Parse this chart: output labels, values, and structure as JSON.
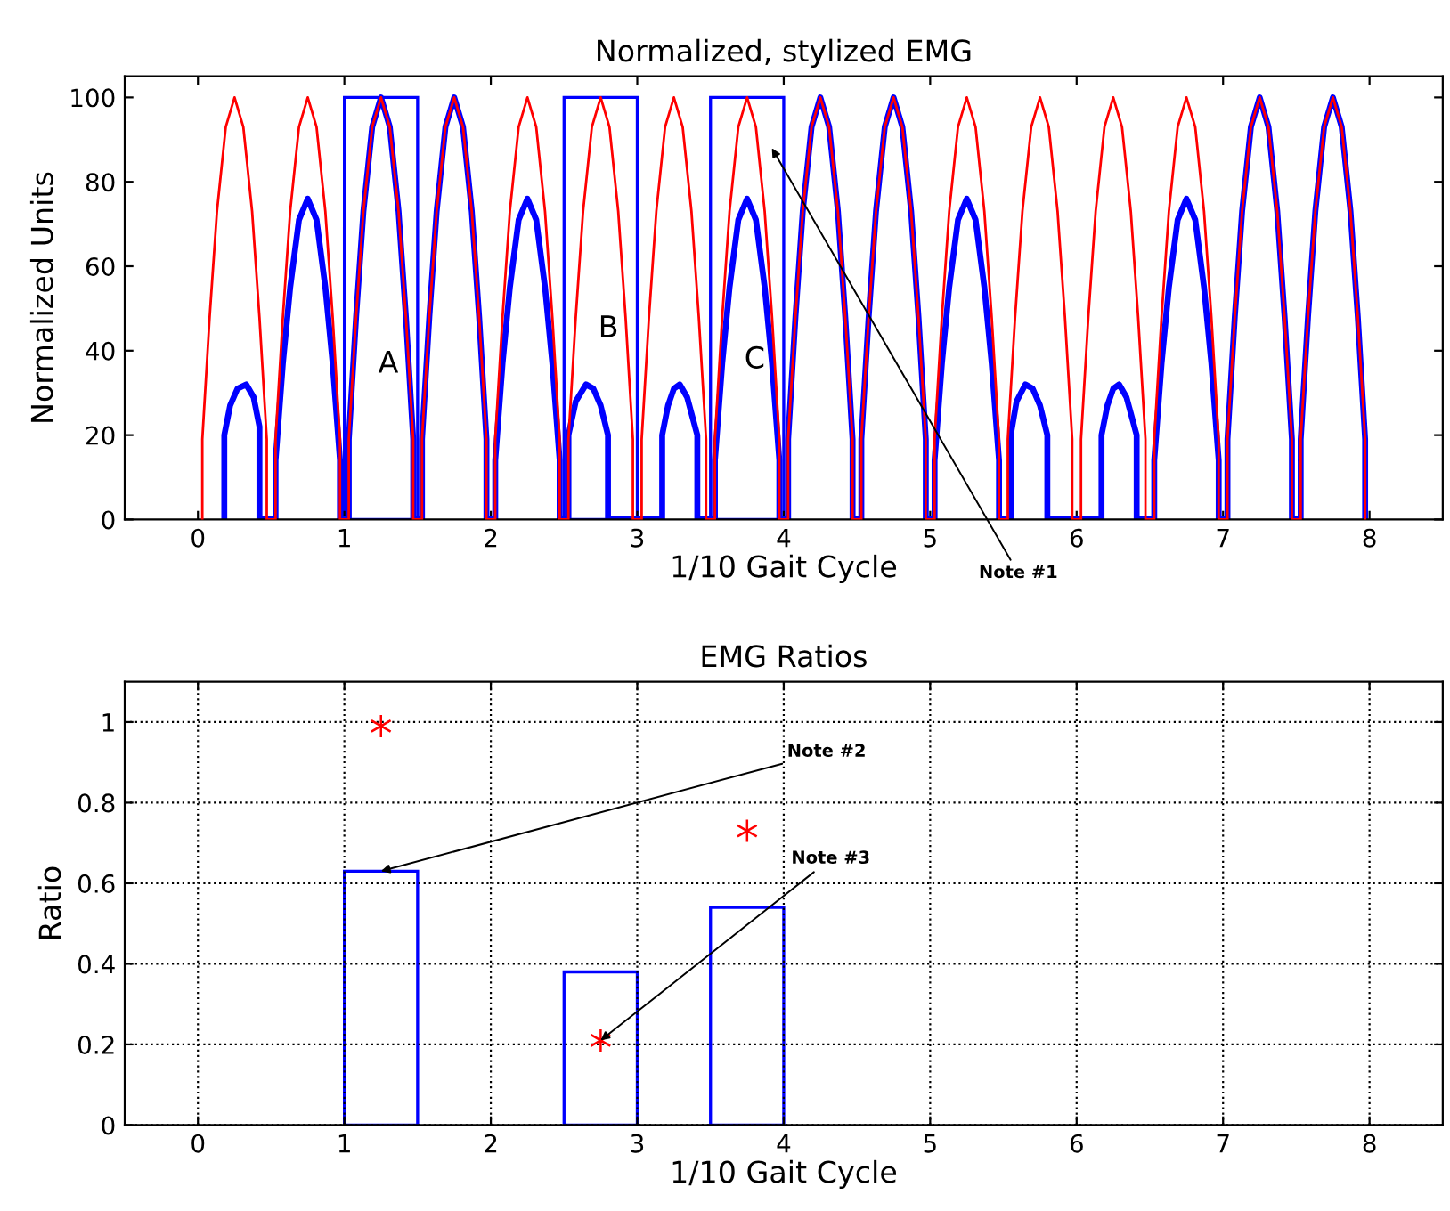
{
  "chart_data": [
    {
      "type": "line",
      "title": "Normalized, stylized EMG",
      "xlabel": "1/10 Gait Cycle",
      "ylabel": "Normalized Units",
      "xlim": [
        -0.5,
        8.5
      ],
      "ylim": [
        0,
        105
      ],
      "xticks": [
        0,
        1,
        2,
        3,
        4,
        5,
        6,
        7,
        8
      ],
      "yticks": [
        0,
        20,
        40,
        60,
        80,
        100
      ],
      "grid": false,
      "line_style": "solid",
      "marker": "none",
      "series": [
        {
          "color": "#ff0000",
          "x": [
            0.03,
            0.03,
            0.08,
            0.13,
            0.19,
            0.25,
            0.31,
            0.37,
            0.42,
            0.47,
            0.47,
            0.53,
            0.53,
            0.58,
            0.63,
            0.69,
            0.75,
            0.81,
            0.87,
            0.92,
            0.97,
            0.97,
            1.03,
            1.03,
            1.08,
            1.13,
            1.19,
            1.25,
            1.31,
            1.37,
            1.42,
            1.47,
            1.47,
            1.53,
            1.53,
            1.58,
            1.63,
            1.69,
            1.75,
            1.81,
            1.87,
            1.92,
            1.97,
            1.97,
            2.03,
            2.03,
            2.08,
            2.13,
            2.19,
            2.25,
            2.31,
            2.37,
            2.42,
            2.47,
            2.47,
            2.53,
            2.53,
            2.58,
            2.63,
            2.69,
            2.75,
            2.81,
            2.87,
            2.92,
            2.97,
            2.97,
            3.03,
            3.03,
            3.08,
            3.13,
            3.19,
            3.25,
            3.31,
            3.37,
            3.42,
            3.47,
            3.47,
            3.53,
            3.53,
            3.58,
            3.63,
            3.69,
            3.75,
            3.81,
            3.87,
            3.92,
            3.97,
            3.97,
            4.03,
            4.03,
            4.08,
            4.13,
            4.19,
            4.25,
            4.31,
            4.37,
            4.42,
            4.47,
            4.47,
            4.53,
            4.53,
            4.58,
            4.63,
            4.69,
            4.75,
            4.81,
            4.87,
            4.92,
            4.97,
            4.97,
            5.03,
            5.03,
            5.08,
            5.13,
            5.19,
            5.25,
            5.31,
            5.37,
            5.42,
            5.47,
            5.47,
            5.53,
            5.53,
            5.58,
            5.63,
            5.69,
            5.75,
            5.81,
            5.87,
            5.92,
            5.97,
            5.97,
            6.03,
            6.03,
            6.08,
            6.13,
            6.19,
            6.25,
            6.31,
            6.37,
            6.42,
            6.47,
            6.47,
            6.53,
            6.53,
            6.58,
            6.63,
            6.69,
            6.75,
            6.81,
            6.87,
            6.92,
            6.97,
            6.97,
            7.03,
            7.03,
            7.08,
            7.13,
            7.19,
            7.25,
            7.31,
            7.37,
            7.42,
            7.47,
            7.47,
            7.53,
            7.53,
            7.58,
            7.63,
            7.69,
            7.75,
            7.81,
            7.87,
            7.92,
            7.97,
            7.97
          ],
          "values": [
            0,
            19,
            48,
            73,
            93,
            100,
            93,
            73,
            48,
            19,
            0,
            0,
            19,
            48,
            73,
            93,
            100,
            93,
            73,
            48,
            19,
            0,
            0,
            19,
            48,
            73,
            93,
            100,
            93,
            73,
            48,
            19,
            0,
            0,
            19,
            48,
            73,
            93,
            100,
            93,
            73,
            48,
            19,
            0,
            0,
            19,
            48,
            73,
            93,
            100,
            93,
            73,
            48,
            19,
            0,
            0,
            19,
            48,
            73,
            93,
            100,
            93,
            73,
            48,
            19,
            0,
            0,
            19,
            48,
            73,
            93,
            100,
            93,
            73,
            48,
            19,
            0,
            0,
            19,
            48,
            73,
            93,
            100,
            93,
            73,
            48,
            19,
            0,
            0,
            19,
            48,
            73,
            93,
            100,
            93,
            73,
            48,
            19,
            0,
            0,
            19,
            48,
            73,
            93,
            100,
            93,
            73,
            48,
            19,
            0,
            0,
            19,
            48,
            73,
            93,
            100,
            93,
            73,
            48,
            19,
            0,
            0,
            19,
            48,
            73,
            93,
            100,
            93,
            73,
            48,
            19,
            0,
            0,
            19,
            48,
            73,
            93,
            100,
            93,
            73,
            48,
            19,
            0,
            0,
            19,
            48,
            73,
            93,
            100,
            93,
            73,
            48,
            19,
            0,
            0,
            19,
            48,
            73,
            93,
            100,
            93,
            73,
            48,
            19,
            0,
            0,
            19,
            48,
            73,
            93,
            100,
            93,
            73,
            48,
            19,
            0
          ]
        },
        {
          "color": "#0000ff",
          "x": [
            0.18,
            0.18,
            0.22,
            0.27,
            0.33,
            0.38,
            0.42,
            0.42,
            0.53,
            0.53,
            0.58,
            0.63,
            0.69,
            0.75,
            0.81,
            0.87,
            0.92,
            0.97,
            0.97,
            1.03,
            1.03,
            1.08,
            1.13,
            1.19,
            1.25,
            1.31,
            1.37,
            1.42,
            1.47,
            1.47,
            1.53,
            1.53,
            1.58,
            1.63,
            1.69,
            1.75,
            1.81,
            1.87,
            1.92,
            1.97,
            1.97,
            2.03,
            2.03,
            2.08,
            2.13,
            2.19,
            2.25,
            2.31,
            2.37,
            2.42,
            2.47,
            2.47,
            2.53,
            2.53,
            2.58,
            2.65,
            2.7,
            2.75,
            2.8,
            2.8,
            3.17,
            3.17,
            3.21,
            3.25,
            3.29,
            3.34,
            3.41,
            3.41,
            3.53,
            3.53,
            3.58,
            3.63,
            3.69,
            3.75,
            3.81,
            3.87,
            3.92,
            3.97,
            3.97,
            4.03,
            4.03,
            4.08,
            4.13,
            4.19,
            4.25,
            4.31,
            4.37,
            4.42,
            4.47,
            4.47,
            4.53,
            4.53,
            4.58,
            4.63,
            4.69,
            4.75,
            4.81,
            4.87,
            4.92,
            4.97,
            4.97,
            5.03,
            5.03,
            5.08,
            5.13,
            5.19,
            5.25,
            5.31,
            5.37,
            5.42,
            5.47,
            5.47,
            5.55,
            5.55,
            5.59,
            5.65,
            5.7,
            5.75,
            5.8,
            5.8,
            6.17,
            6.17,
            6.21,
            6.25,
            6.29,
            6.34,
            6.41,
            6.41,
            6.53,
            6.53,
            6.58,
            6.63,
            6.69,
            6.75,
            6.81,
            6.87,
            6.92,
            6.97,
            6.97,
            7.03,
            7.03,
            7.08,
            7.13,
            7.19,
            7.25,
            7.31,
            7.37,
            7.42,
            7.47,
            7.47,
            7.53,
            7.53,
            7.58,
            7.63,
            7.69,
            7.75,
            7.81,
            7.87,
            7.92,
            7.97,
            7.97
          ],
          "values": [
            0,
            20,
            27,
            31,
            32,
            29,
            22,
            0,
            0,
            14,
            37,
            55,
            71,
            76,
            71,
            55,
            37,
            14,
            0,
            0,
            19,
            48,
            73,
            93,
            100,
            93,
            73,
            48,
            19,
            0,
            0,
            19,
            48,
            73,
            93,
            100,
            93,
            73,
            48,
            19,
            0,
            0,
            14,
            37,
            55,
            71,
            76,
            71,
            55,
            37,
            14,
            0,
            0,
            20,
            28,
            32,
            31,
            27,
            20,
            0,
            0,
            20,
            27,
            31,
            32,
            29,
            20,
            0,
            0,
            14,
            37,
            55,
            71,
            76,
            71,
            55,
            37,
            14,
            0,
            0,
            19,
            48,
            73,
            93,
            100,
            93,
            73,
            48,
            19,
            0,
            0,
            19,
            48,
            73,
            93,
            100,
            93,
            73,
            48,
            19,
            0,
            0,
            14,
            37,
            55,
            71,
            76,
            71,
            55,
            37,
            14,
            0,
            0,
            20,
            28,
            32,
            31,
            27,
            20,
            0,
            0,
            20,
            27,
            31,
            32,
            29,
            20,
            0,
            0,
            14,
            37,
            55,
            71,
            76,
            71,
            55,
            37,
            14,
            0,
            0,
            19,
            48,
            73,
            93,
            100,
            93,
            73,
            48,
            19,
            0,
            0,
            19,
            48,
            73,
            93,
            100,
            93,
            73,
            48,
            19,
            0
          ]
        },
        {
          "type": "bar",
          "color": "#0000ff",
          "x": [
            1.25,
            2.75,
            3.75
          ],
          "values": [
            100,
            100,
            100
          ]
        }
      ],
      "annotations": [
        "A",
        "B",
        "C",
        "Note #1"
      ]
    },
    {
      "type": "bar",
      "title": "EMG Ratios",
      "xlabel": "1/10 Gait Cycle",
      "ylabel": "Ratio",
      "xlim": [
        -0.5,
        8.5
      ],
      "ylim": [
        0,
        1.1
      ],
      "xticks": [
        0,
        1,
        2,
        3,
        4,
        5,
        6,
        7,
        8
      ],
      "yticks": [
        0,
        0.2,
        0.4,
        0.6,
        0.8,
        1
      ],
      "grid": true,
      "marker": "cross",
      "series": [
        {
          "type": "bar",
          "color": "#0000ff",
          "x": [
            1.25,
            2.75,
            3.75
          ],
          "values": [
            0.63,
            0.38,
            0.54
          ]
        },
        {
          "type": "scatter",
          "color": "#ff0000",
          "x": [
            1.25,
            2.75,
            3.75
          ],
          "values": [
            0.99,
            0.21,
            0.73
          ]
        }
      ],
      "annotations": [
        {
          "text": "Note #2",
          "x": 1.25,
          "y": 0.63
        },
        {
          "text": "Note #3",
          "x": 2.75,
          "y": 0.21
        }
      ]
    }
  ]
}
